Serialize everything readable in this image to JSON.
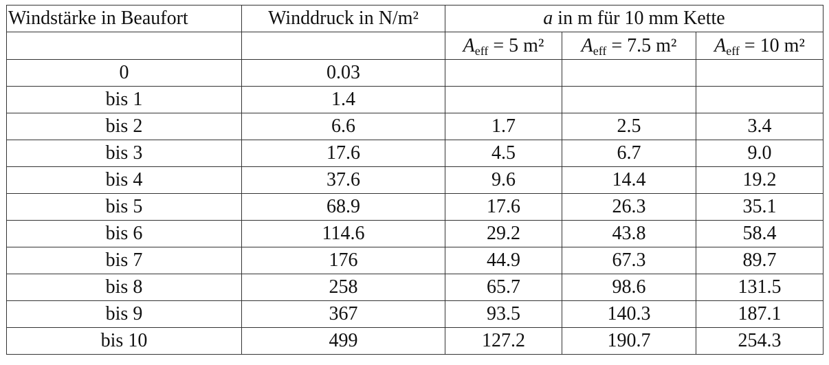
{
  "table": {
    "header": [
      "Windstärke in Beaufort",
      "Winddruck in N/m²",
      {
        "variable": "a",
        "text": " in m für 10 mm Kette"
      }
    ],
    "sub_header": [
      {
        "symbol": "A",
        "subscript": "eff",
        "text": " = 5 m²"
      },
      {
        "symbol": "A",
        "subscript": "eff",
        "text": " = 7.5 m²"
      },
      {
        "symbol": "A",
        "subscript": "eff",
        "text": " = 10 m²"
      }
    ],
    "rows": [
      [
        "0",
        "0.03",
        null,
        null,
        null
      ],
      [
        "bis 1",
        "1.4",
        null,
        null,
        null
      ],
      [
        "bis 2",
        "6.6",
        "1.7",
        "2.5",
        "3.4"
      ],
      [
        "bis 3",
        "17.6",
        "4.5",
        "6.7",
        "9.0"
      ],
      [
        "bis 4",
        "37.6",
        "9.6",
        "14.4",
        "19.2"
      ],
      [
        "bis 5",
        "68.9",
        "17.6",
        "26.3",
        "35.1"
      ],
      [
        "bis 6",
        "114.6",
        "29.2",
        "43.8",
        "58.4"
      ],
      [
        "bis 7",
        "176",
        "44.9",
        "67.3",
        "89.7"
      ],
      [
        "bis 8",
        "258",
        "65.7",
        "98.6",
        "131.5"
      ],
      [
        "bis 9",
        "367",
        "93.5",
        "140.3",
        "187.1"
      ],
      [
        "bis 10",
        "499",
        "127.2",
        "190.7",
        "254.3"
      ]
    ]
  }
}
